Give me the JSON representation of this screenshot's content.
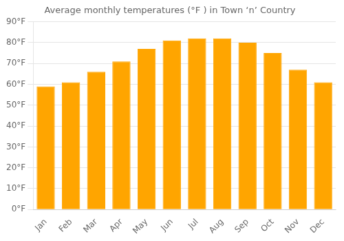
{
  "chart_data": {
    "type": "bar",
    "title": "Average monthly temperatures (°F ) in Town ‘n’ Country",
    "categories": [
      "Jan",
      "Feb",
      "Mar",
      "Apr",
      "May",
      "Jun",
      "Jul",
      "Aug",
      "Sep",
      "Oct",
      "Nov",
      "Dec"
    ],
    "values": [
      59,
      61,
      66,
      71,
      77,
      81,
      82,
      82,
      80,
      75,
      67,
      61
    ],
    "color": "#FFA500",
    "ylim": [
      0,
      90
    ],
    "yticks": [
      {
        "value": 0,
        "label": "0°F"
      },
      {
        "value": 10,
        "label": "10°F"
      },
      {
        "value": 20,
        "label": "20°F"
      },
      {
        "value": 30,
        "label": "30°F"
      },
      {
        "value": 40,
        "label": "40°F"
      },
      {
        "value": 50,
        "label": "50°F"
      },
      {
        "value": 60,
        "label": "60°F"
      },
      {
        "value": 70,
        "label": "70°F"
      },
      {
        "value": 80,
        "label": "80°F"
      },
      {
        "value": 90,
        "label": "90°F"
      }
    ],
    "grid": true
  }
}
